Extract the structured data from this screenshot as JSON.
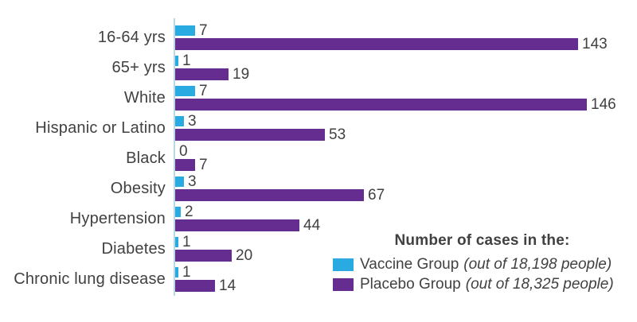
{
  "chart_data": {
    "type": "bar",
    "orientation": "horizontal",
    "title": "",
    "xlabel": "",
    "ylabel": "",
    "xlim": [
      0,
      146
    ],
    "grid": false,
    "legend_position": "bottom-right",
    "legend_title": "Number of cases in the:",
    "categories": [
      "16-64 yrs",
      "65+ yrs",
      "White",
      "Hispanic or Latino",
      "Black",
      "Obesity",
      "Hypertension",
      "Diabetes",
      "Chronic lung disease"
    ],
    "series": [
      {
        "key": "vaccine",
        "name": "Vaccine Group",
        "suffix": "(out of 18,198 people)",
        "color": "#29abe2",
        "values": [
          7,
          1,
          7,
          3,
          0,
          3,
          2,
          1,
          1
        ]
      },
      {
        "key": "placebo",
        "name": "Placebo Group",
        "suffix": "(out of 18,325 people)",
        "color": "#662d91",
        "values": [
          143,
          19,
          146,
          53,
          7,
          67,
          44,
          20,
          14
        ]
      }
    ]
  },
  "colors": {
    "vaccine_blue": "#29abe2",
    "placebo_purple": "#662d91",
    "text": "#414042",
    "axis": "#b5d9e8"
  }
}
